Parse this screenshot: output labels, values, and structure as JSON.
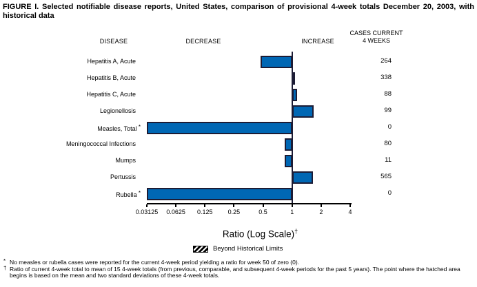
{
  "figure_title": "FIGURE I. Selected notifiable disease reports, United States, comparison of provisional 4-week totals December 20, 2003, with historical data",
  "columns": {
    "disease": "DISEASE",
    "decrease": "DECREASE",
    "increase": "INCREASE",
    "cases_line1": "CASES CURRENT",
    "cases_line2": "4 WEEKS"
  },
  "chart_data": {
    "type": "bar",
    "orientation": "horizontal",
    "scale": "log2",
    "axis": {
      "label": "Ratio (Log Scale)",
      "label_sup": "†",
      "min": 0.03125,
      "max": 4,
      "baseline": 1,
      "ticks": [
        0.03125,
        0.0625,
        0.125,
        0.25,
        0.5,
        1,
        2,
        4
      ],
      "tick_labels": [
        "0.03125",
        "0.0625",
        "0.125",
        "0.25",
        "0.5",
        "1",
        "2",
        "4"
      ]
    },
    "rows": [
      {
        "disease": "Hepatitis A, Acute",
        "ratio": 0.47,
        "cases": "264"
      },
      {
        "disease": "Hepatitis B, Acute",
        "ratio": 1.06,
        "cases": "338"
      },
      {
        "disease": "Hepatitis C, Acute",
        "ratio": 1.13,
        "cases": "88"
      },
      {
        "disease": "Legionellosis",
        "ratio": 1.66,
        "cases": "99"
      },
      {
        "disease": "Measles, Total",
        "note": "*",
        "ratio": 0,
        "cases": "0"
      },
      {
        "disease": "Meningococcal Infections",
        "ratio": 0.84,
        "cases": "80"
      },
      {
        "disease": "Mumps",
        "ratio": 0.84,
        "cases": "11"
      },
      {
        "disease": "Pertussis",
        "ratio": 1.64,
        "cases": "565"
      },
      {
        "disease": "Rubella",
        "note": "*",
        "ratio": 0,
        "cases": "0"
      }
    ]
  },
  "legend": {
    "label": "Beyond Historical Limits"
  },
  "footnotes": [
    {
      "marker": "*",
      "text": "No measles or rubella cases were reported for the current 4-week period yielding a ratio for week 50 of zero (0)."
    },
    {
      "marker": "†",
      "text": "Ratio of current 4-week total to mean of 15 4-week totals (from previous, comparable, and subsequent 4-week periods for the past 5 years). The point where the hatched area begins is based on the mean and two standard deviations of these 4-week totals."
    }
  ],
  "colors": {
    "bar_fill": "#0067b4",
    "bar_border": "#1c1c35",
    "axis": "#000000",
    "text": "#000000",
    "background": "#ffffff"
  }
}
